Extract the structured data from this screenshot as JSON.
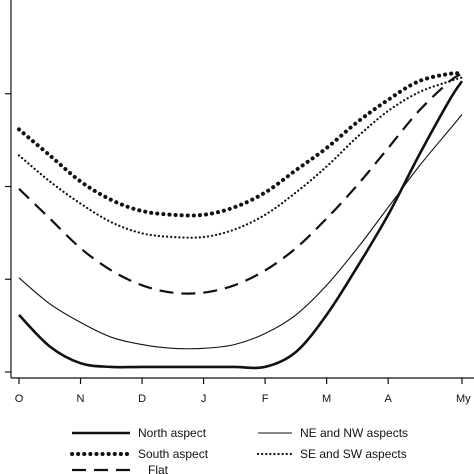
{
  "chart_data": {
    "type": "line",
    "title": "",
    "xlabel": "",
    "ylabel": "",
    "x_ticks": [
      "O",
      "N",
      "D",
      "J",
      "F",
      "M",
      "A",
      "My"
    ],
    "xlim": [
      0,
      7.2
    ],
    "ylim": [
      0,
      1
    ],
    "y_ticks": [
      0,
      0.25,
      0.5,
      0.75
    ],
    "grid": false,
    "legend_position": "bottom",
    "series": [
      {
        "name": "North aspect",
        "style": "thick-solid",
        "x": [
          0,
          0.5,
          1,
          1.5,
          2,
          2.5,
          3,
          3.5,
          4,
          4.5,
          5,
          5.5,
          6,
          6.5,
          7,
          7.2
        ],
        "y": [
          0.17,
          0.085,
          0.04,
          0.03,
          0.03,
          0.03,
          0.03,
          0.03,
          0.03,
          0.07,
          0.17,
          0.3,
          0.44,
          0.6,
          0.75,
          0.8
        ]
      },
      {
        "name": "South aspect",
        "style": "dotted-bold",
        "x": [
          0,
          0.5,
          1,
          1.5,
          2,
          2.5,
          3,
          3.5,
          4,
          4.5,
          5,
          5.5,
          6,
          6.5,
          7,
          7.2
        ],
        "y": [
          0.67,
          0.6,
          0.53,
          0.48,
          0.45,
          0.44,
          0.44,
          0.46,
          0.5,
          0.56,
          0.62,
          0.69,
          0.75,
          0.8,
          0.82,
          0.82
        ]
      },
      {
        "name": "Flat",
        "style": "dashed",
        "x": [
          0,
          0.5,
          1,
          1.5,
          2,
          2.5,
          3,
          3.5,
          4,
          4.5,
          5,
          5.5,
          6,
          6.5,
          7,
          7.2
        ],
        "y": [
          0.51,
          0.43,
          0.35,
          0.29,
          0.25,
          0.23,
          0.23,
          0.25,
          0.29,
          0.35,
          0.43,
          0.52,
          0.62,
          0.72,
          0.8,
          0.82
        ]
      },
      {
        "name": "NE and NW aspects",
        "style": "thin-solid",
        "x": [
          0,
          0.5,
          1,
          1.5,
          2,
          2.5,
          3,
          3.5,
          4,
          4.5,
          5,
          5.5,
          6,
          6.5,
          7,
          7.2
        ],
        "y": [
          0.27,
          0.2,
          0.15,
          0.11,
          0.09,
          0.08,
          0.08,
          0.09,
          0.12,
          0.17,
          0.25,
          0.35,
          0.46,
          0.57,
          0.67,
          0.71
        ]
      },
      {
        "name": "SE and SW aspects",
        "style": "dotted-fine",
        "x": [
          0,
          0.5,
          1,
          1.5,
          2,
          2.5,
          3,
          3.5,
          4,
          4.5,
          5,
          5.5,
          6,
          6.5,
          7,
          7.2
        ],
        "y": [
          0.6,
          0.53,
          0.47,
          0.42,
          0.39,
          0.38,
          0.38,
          0.4,
          0.44,
          0.5,
          0.57,
          0.65,
          0.72,
          0.77,
          0.8,
          0.81
        ]
      }
    ]
  }
}
